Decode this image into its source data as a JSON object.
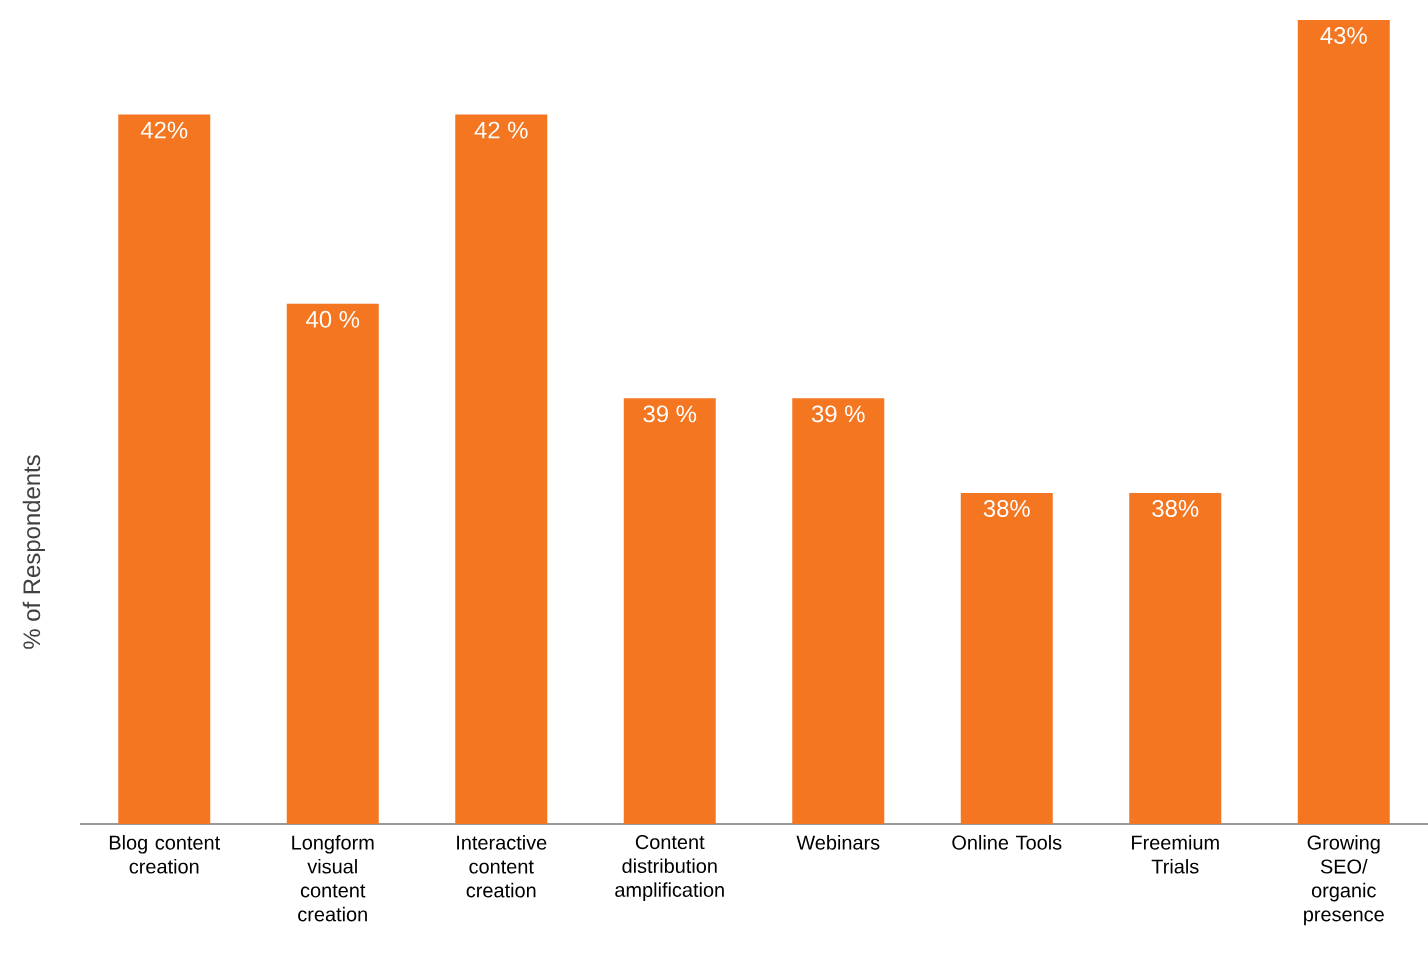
{
  "chart_data": {
    "type": "bar",
    "ylabel": "% of Respondents",
    "categories": [
      "Blog content creation",
      "Longform visual content creation",
      "Interactive content creation",
      "Content distribution amplification",
      "Webinars",
      "Online Tools",
      "Freemium Trials",
      "Growing SEO/ organic presence"
    ],
    "values": [
      42,
      40,
      42,
      39,
      39,
      38,
      38,
      43
    ],
    "value_labels": [
      "42%",
      "40 %",
      "42 %",
      "39 %",
      "39 %",
      "38%",
      "38%",
      "43%"
    ],
    "color": "#f47620",
    "ylim": [
      34.5,
      43
    ]
  }
}
